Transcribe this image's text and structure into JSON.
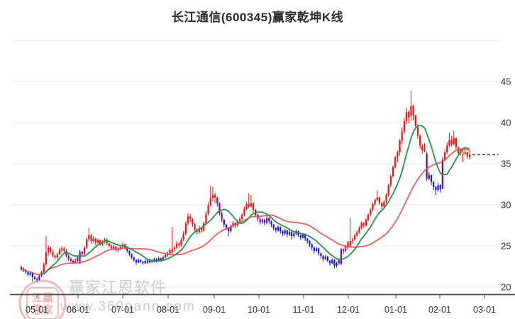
{
  "title": "长江通信(600345)赢家乾坤K线",
  "watermark": {
    "brand": "赢家江恩软件",
    "url": "www.360gann.com",
    "seal_line1": "江赢",
    "seal_line2": "恩家"
  },
  "axes": {
    "y_tick_labels": [
      "45",
      "40",
      "35",
      "30",
      "25",
      "20"
    ],
    "y_tick_values": [
      45,
      40,
      35,
      30,
      25,
      20
    ],
    "x_tick_labels": [
      "05-01",
      "06-01",
      "07-01",
      "08-01",
      "09-01",
      "10-01",
      "11-01",
      "12-01",
      "01-01",
      "02-01",
      "03-01"
    ]
  },
  "last_price_line": {
    "value": 36.1,
    "style": "dashed"
  },
  "colors": {
    "up": "#e81212",
    "down": "#1414cf",
    "transition": "#6e0aa0",
    "ma_short": "#2a9147",
    "ma_long": "#ee4b4b",
    "grid": "#e9e9e9",
    "axis": "#4a4a4a",
    "tick_text": "#333333",
    "title_text": "#2b2b2b",
    "watermark_text": "#cbcbcb",
    "seal": "#e08484",
    "price_line": "#0a0a0a"
  },
  "chart_data": {
    "type": "candlestick",
    "title": "长江通信(600345)赢家乾坤K线",
    "ylim": [
      20,
      50
    ],
    "y_grid_values": [
      50,
      45,
      40,
      35,
      30,
      25,
      20
    ],
    "x_months": [
      "05-01",
      "06-01",
      "07-01",
      "08-01",
      "09-01",
      "10-01",
      "11-01",
      "12-01",
      "01-01",
      "02-01",
      "03-01"
    ],
    "last_close": 36.1,
    "ma_windows": {
      "short": 10,
      "long": 30
    },
    "legend": [],
    "candle_format": [
      "open",
      "high",
      "low",
      "close",
      "colorKey 0=up-red 1=down-blue 2=transition-purple"
    ],
    "candles": [
      [
        22.4,
        22.6,
        22.0,
        22.2,
        1
      ],
      [
        22.2,
        22.4,
        21.8,
        22.0,
        1
      ],
      [
        22.0,
        22.2,
        21.6,
        21.8,
        1
      ],
      [
        21.8,
        21.9,
        21.3,
        21.5,
        1
      ],
      [
        21.5,
        21.9,
        21.4,
        21.7,
        1
      ],
      [
        21.7,
        21.8,
        20.7,
        21.2,
        1
      ],
      [
        21.2,
        21.4,
        20.9,
        21.0,
        1
      ],
      [
        21.0,
        21.2,
        20.6,
        20.9,
        1
      ],
      [
        20.9,
        21.6,
        20.8,
        21.4,
        2
      ],
      [
        21.4,
        22.0,
        21.2,
        21.8,
        2
      ],
      [
        21.8,
        23.0,
        21.7,
        22.8,
        0
      ],
      [
        22.8,
        26.2,
        22.6,
        24.2,
        0
      ],
      [
        24.2,
        25.1,
        23.8,
        24.8,
        0
      ],
      [
        24.8,
        24.9,
        24.0,
        24.3,
        0
      ],
      [
        24.3,
        24.5,
        23.6,
        23.8,
        0
      ],
      [
        23.8,
        24.0,
        23.3,
        23.6,
        0
      ],
      [
        23.6,
        24.2,
        23.4,
        24.0,
        0
      ],
      [
        24.0,
        24.8,
        23.9,
        24.5,
        0
      ],
      [
        24.5,
        25.0,
        24.2,
        24.7,
        0
      ],
      [
        24.7,
        24.9,
        24.1,
        24.4,
        0
      ],
      [
        24.4,
        24.6,
        23.6,
        23.8,
        2
      ],
      [
        23.8,
        24.0,
        23.2,
        23.4,
        2
      ],
      [
        23.4,
        23.6,
        23.0,
        23.2,
        2
      ],
      [
        23.2,
        23.4,
        22.8,
        23.0,
        2
      ],
      [
        23.0,
        23.5,
        22.9,
        23.2,
        2
      ],
      [
        23.2,
        23.8,
        23.1,
        23.6,
        2
      ],
      [
        22.9,
        24.5,
        22.8,
        24.3,
        2
      ],
      [
        24.3,
        24.4,
        23.7,
        24.0,
        2
      ],
      [
        24.0,
        25.0,
        23.9,
        24.8,
        0
      ],
      [
        24.8,
        26.0,
        24.6,
        25.8,
        0
      ],
      [
        25.8,
        27.2,
        25.5,
        26.3,
        0
      ],
      [
        26.3,
        26.5,
        25.3,
        25.6,
        0
      ],
      [
        25.6,
        26.2,
        25.4,
        25.9,
        0
      ],
      [
        25.9,
        26.0,
        25.1,
        25.4,
        0
      ],
      [
        25.4,
        25.9,
        25.2,
        25.7,
        0
      ],
      [
        25.7,
        25.8,
        25.0,
        25.2,
        0
      ],
      [
        25.2,
        25.7,
        25.0,
        25.5,
        0
      ],
      [
        25.5,
        26.0,
        25.3,
        25.8,
        0
      ],
      [
        25.8,
        25.9,
        25.1,
        25.3,
        0
      ],
      [
        25.3,
        25.4,
        24.8,
        25.0,
        0
      ],
      [
        25.0,
        25.2,
        24.5,
        24.7,
        0
      ],
      [
        24.7,
        25.1,
        24.5,
        24.9,
        2
      ],
      [
        24.9,
        25.0,
        24.3,
        24.5,
        2
      ],
      [
        24.5,
        24.9,
        24.3,
        24.7,
        2
      ],
      [
        24.7,
        25.1,
        24.5,
        24.9,
        0
      ],
      [
        24.9,
        25.4,
        24.7,
        25.2,
        0
      ],
      [
        25.2,
        25.3,
        24.6,
        24.8,
        0
      ],
      [
        24.8,
        24.9,
        24.2,
        24.4,
        1
      ],
      [
        24.4,
        24.5,
        23.8,
        24.0,
        1
      ],
      [
        24.0,
        24.1,
        23.4,
        23.6,
        1
      ],
      [
        23.6,
        23.7,
        23.1,
        23.3,
        1
      ],
      [
        23.3,
        23.4,
        22.7,
        23.0,
        1
      ],
      [
        23.0,
        23.5,
        22.9,
        23.3,
        1
      ],
      [
        23.3,
        23.4,
        22.9,
        23.1,
        1
      ],
      [
        23.1,
        23.2,
        22.7,
        22.9,
        1
      ],
      [
        22.9,
        23.4,
        22.8,
        23.2,
        1
      ],
      [
        23.2,
        23.3,
        22.8,
        23.0,
        1
      ],
      [
        23.0,
        23.5,
        22.9,
        23.3,
        1
      ],
      [
        23.3,
        23.4,
        22.9,
        23.1,
        1
      ],
      [
        23.1,
        23.6,
        23.0,
        23.4,
        1
      ],
      [
        23.4,
        23.5,
        23.0,
        23.2,
        1
      ],
      [
        23.2,
        23.7,
        23.1,
        23.5,
        1
      ],
      [
        23.5,
        23.6,
        23.1,
        23.3,
        1
      ],
      [
        23.3,
        23.8,
        23.2,
        23.6,
        2
      ],
      [
        23.6,
        24.1,
        23.5,
        23.9,
        2
      ],
      [
        23.9,
        24.3,
        23.7,
        24.1,
        2
      ],
      [
        24.1,
        24.7,
        23.9,
        24.5,
        0
      ],
      [
        24.3,
        27.3,
        24.0,
        24.6,
        0
      ],
      [
        24.6,
        25.0,
        24.3,
        24.8,
        0
      ],
      [
        24.8,
        25.6,
        24.6,
        25.3,
        0
      ],
      [
        25.3,
        25.5,
        24.8,
        25.1,
        0
      ],
      [
        25.1,
        26.0,
        24.9,
        25.8,
        0
      ],
      [
        25.8,
        26.8,
        25.6,
        26.5,
        0
      ],
      [
        26.5,
        28.0,
        26.3,
        27.8,
        0
      ],
      [
        27.8,
        29.0,
        27.5,
        28.6,
        0
      ],
      [
        28.6,
        28.9,
        27.9,
        28.3,
        0
      ],
      [
        28.3,
        28.4,
        27.3,
        27.6,
        0
      ],
      [
        27.6,
        27.8,
        26.8,
        27.0,
        0
      ],
      [
        27.0,
        27.2,
        26.4,
        26.7,
        0
      ],
      [
        26.7,
        27.5,
        26.5,
        27.2,
        0
      ],
      [
        27.2,
        27.3,
        26.6,
        26.9,
        0
      ],
      [
        26.9,
        28.0,
        26.7,
        27.8,
        0
      ],
      [
        27.8,
        29.2,
        27.6,
        28.9,
        0
      ],
      [
        28.9,
        30.3,
        28.7,
        30.0,
        0
      ],
      [
        30.0,
        32.3,
        29.8,
        30.8,
        0
      ],
      [
        30.8,
        32.2,
        30.4,
        31.2,
        0
      ],
      [
        31.2,
        31.5,
        30.2,
        30.9,
        0
      ],
      [
        30.9,
        31.0,
        29.8,
        30.2,
        2
      ],
      [
        30.2,
        30.3,
        28.7,
        29.0,
        2
      ],
      [
        29.0,
        29.2,
        27.9,
        28.2,
        2
      ],
      [
        28.2,
        28.3,
        27.3,
        27.6,
        1
      ],
      [
        27.6,
        27.7,
        26.9,
        27.2,
        1
      ],
      [
        27.2,
        27.3,
        26.2,
        26.8,
        1
      ],
      [
        26.8,
        27.6,
        26.6,
        27.4,
        1
      ],
      [
        27.4,
        28.0,
        27.2,
        27.8,
        0
      ],
      [
        27.8,
        27.9,
        27.2,
        27.5,
        1
      ],
      [
        27.5,
        28.2,
        27.3,
        28.0,
        0
      ],
      [
        28.0,
        28.5,
        27.8,
        28.3,
        0
      ],
      [
        28.3,
        29.0,
        28.1,
        28.8,
        0
      ],
      [
        28.8,
        29.8,
        28.6,
        29.5,
        0
      ],
      [
        29.5,
        30.4,
        29.3,
        30.1,
        0
      ],
      [
        30.1,
        31.4,
        29.6,
        29.8,
        0
      ],
      [
        29.8,
        31.2,
        29.7,
        30.2,
        0
      ],
      [
        30.2,
        30.3,
        29.1,
        29.4,
        0
      ],
      [
        29.4,
        29.5,
        28.5,
        28.8,
        2
      ],
      [
        28.8,
        28.9,
        28.0,
        28.3,
        2
      ],
      [
        28.3,
        28.5,
        27.6,
        27.9,
        2
      ],
      [
        27.9,
        28.4,
        27.7,
        28.2,
        2
      ],
      [
        28.2,
        28.3,
        27.5,
        27.8,
        1
      ],
      [
        27.8,
        28.8,
        27.6,
        28.4,
        2
      ],
      [
        28.4,
        28.5,
        27.7,
        28.0,
        1
      ],
      [
        28.0,
        28.1,
        27.3,
        27.6,
        1
      ],
      [
        27.6,
        27.7,
        26.9,
        27.2,
        1
      ],
      [
        27.2,
        27.3,
        26.6,
        26.9,
        1
      ],
      [
        26.9,
        27.5,
        26.7,
        27.3,
        1
      ],
      [
        27.3,
        27.4,
        26.5,
        26.8,
        1
      ],
      [
        26.8,
        26.9,
        26.2,
        26.5,
        1
      ],
      [
        26.5,
        27.1,
        26.3,
        26.9,
        1
      ],
      [
        26.9,
        27.0,
        26.1,
        26.4,
        1
      ],
      [
        26.4,
        26.9,
        26.2,
        26.7,
        1
      ],
      [
        26.7,
        26.8,
        25.8,
        26.2,
        1
      ],
      [
        26.2,
        26.7,
        26.0,
        26.5,
        1
      ],
      [
        26.5,
        27.0,
        26.3,
        26.8,
        1
      ],
      [
        26.8,
        26.9,
        26.1,
        26.3,
        1
      ],
      [
        26.3,
        26.4,
        25.7,
        26.0,
        1
      ],
      [
        26.0,
        26.6,
        25.9,
        26.4,
        1
      ],
      [
        26.4,
        26.5,
        25.6,
        25.9,
        1
      ],
      [
        25.9,
        26.0,
        25.3,
        25.6,
        1
      ],
      [
        25.6,
        25.7,
        24.9,
        25.2,
        1
      ],
      [
        25.2,
        25.3,
        24.5,
        24.8,
        1
      ],
      [
        24.8,
        24.9,
        24.1,
        24.4,
        1
      ],
      [
        24.4,
        24.9,
        24.3,
        24.7,
        1
      ],
      [
        24.7,
        24.8,
        23.8,
        24.1,
        1
      ],
      [
        24.1,
        24.2,
        23.5,
        23.8,
        1
      ],
      [
        23.8,
        23.9,
        23.1,
        23.4,
        1
      ],
      [
        23.4,
        23.9,
        23.3,
        23.7,
        1
      ],
      [
        23.7,
        23.8,
        23.0,
        23.2,
        1
      ],
      [
        23.2,
        23.3,
        22.6,
        22.9,
        1
      ],
      [
        22.9,
        23.5,
        22.8,
        23.3,
        1
      ],
      [
        23.3,
        23.4,
        22.3,
        22.6,
        1
      ],
      [
        22.6,
        23.1,
        22.4,
        22.9,
        1
      ],
      [
        22.9,
        23.5,
        22.7,
        23.3,
        2
      ],
      [
        22.8,
        24.8,
        22.7,
        24.6,
        2
      ],
      [
        24.6,
        24.7,
        24.0,
        24.4,
        2
      ],
      [
        24.4,
        25.1,
        24.2,
        24.9,
        0
      ],
      [
        24.9,
        25.6,
        24.7,
        25.4,
        0
      ],
      [
        25.0,
        28.4,
        24.9,
        25.6,
        0
      ],
      [
        25.6,
        26.0,
        25.3,
        25.8,
        0
      ],
      [
        25.8,
        26.5,
        25.6,
        26.3,
        0
      ],
      [
        26.3,
        26.9,
        26.1,
        26.7,
        0
      ],
      [
        26.7,
        27.4,
        26.5,
        27.2,
        0
      ],
      [
        27.2,
        28.0,
        27.0,
        27.8,
        0
      ],
      [
        27.8,
        27.9,
        27.2,
        27.5,
        0
      ],
      [
        27.5,
        28.4,
        27.3,
        28.2,
        0
      ],
      [
        28.2,
        29.0,
        28.0,
        28.8,
        0
      ],
      [
        28.8,
        29.6,
        28.6,
        29.4,
        0
      ],
      [
        29.4,
        30.3,
        29.2,
        30.1,
        0
      ],
      [
        30.1,
        30.8,
        29.9,
        30.6,
        0
      ],
      [
        30.6,
        31.8,
        30.4,
        30.9,
        0
      ],
      [
        30.9,
        31.0,
        30.0,
        30.2,
        0
      ],
      [
        30.2,
        30.3,
        29.5,
        29.8,
        0
      ],
      [
        29.8,
        30.6,
        29.6,
        30.4,
        0
      ],
      [
        30.4,
        31.4,
        30.2,
        31.2,
        0
      ],
      [
        31.2,
        32.6,
        31.0,
        32.4,
        0
      ],
      [
        32.4,
        33.7,
        32.2,
        33.5,
        0
      ],
      [
        33.5,
        34.8,
        33.3,
        34.6,
        0
      ],
      [
        34.6,
        36.0,
        34.4,
        35.8,
        0
      ],
      [
        35.8,
        36.6,
        35.2,
        36.4,
        0
      ],
      [
        36.4,
        38.0,
        36.0,
        37.8,
        0
      ],
      [
        37.8,
        39.4,
        37.4,
        38.9,
        0
      ],
      [
        38.9,
        40.6,
        38.6,
        40.2,
        0
      ],
      [
        40.2,
        41.8,
        39.8,
        41.3,
        0
      ],
      [
        41.3,
        41.5,
        39.9,
        40.6,
        0
      ],
      [
        40.8,
        43.9,
        40.2,
        42.0,
        0
      ],
      [
        42.0,
        42.2,
        40.3,
        40.9,
        0
      ],
      [
        40.9,
        41.0,
        39.2,
        39.6,
        0
      ],
      [
        39.6,
        39.8,
        38.0,
        38.4,
        0
      ],
      [
        38.4,
        38.6,
        36.8,
        37.2,
        0
      ],
      [
        37.2,
        37.4,
        36.2,
        36.6,
        0
      ],
      [
        36.6,
        37.5,
        36.4,
        36.9,
        0
      ],
      [
        36.2,
        36.5,
        32.9,
        33.2,
        2
      ],
      [
        33.2,
        34.0,
        33.0,
        33.6,
        1
      ],
      [
        33.6,
        33.7,
        32.4,
        32.8,
        1
      ],
      [
        32.8,
        32.9,
        31.8,
        32.2,
        1
      ],
      [
        32.2,
        32.3,
        31.2,
        31.8,
        1
      ],
      [
        31.8,
        32.7,
        31.6,
        32.4,
        1
      ],
      [
        32.4,
        32.5,
        31.5,
        31.9,
        1
      ],
      [
        32.0,
        35.8,
        31.9,
        35.5,
        2
      ],
      [
        35.5,
        36.8,
        35.3,
        36.4,
        0
      ],
      [
        36.4,
        37.6,
        36.2,
        37.2,
        0
      ],
      [
        37.2,
        38.8,
        37.0,
        37.9,
        0
      ],
      [
        37.9,
        38.4,
        37.1,
        37.4,
        0
      ],
      [
        37.4,
        39.0,
        37.2,
        38.1,
        0
      ],
      [
        38.1,
        38.2,
        36.7,
        37.0,
        0
      ],
      [
        37.0,
        37.1,
        35.9,
        36.3,
        0
      ],
      [
        36.3,
        36.9,
        36.0,
        36.6,
        0
      ],
      [
        36.2,
        36.7,
        35.2,
        36.2,
        0
      ],
      [
        36.2,
        36.8,
        36.0,
        36.4,
        0
      ],
      [
        36.4,
        36.5,
        35.6,
        35.9,
        0
      ],
      [
        35.8,
        36.6,
        35.5,
        36.1,
        0
      ]
    ]
  }
}
